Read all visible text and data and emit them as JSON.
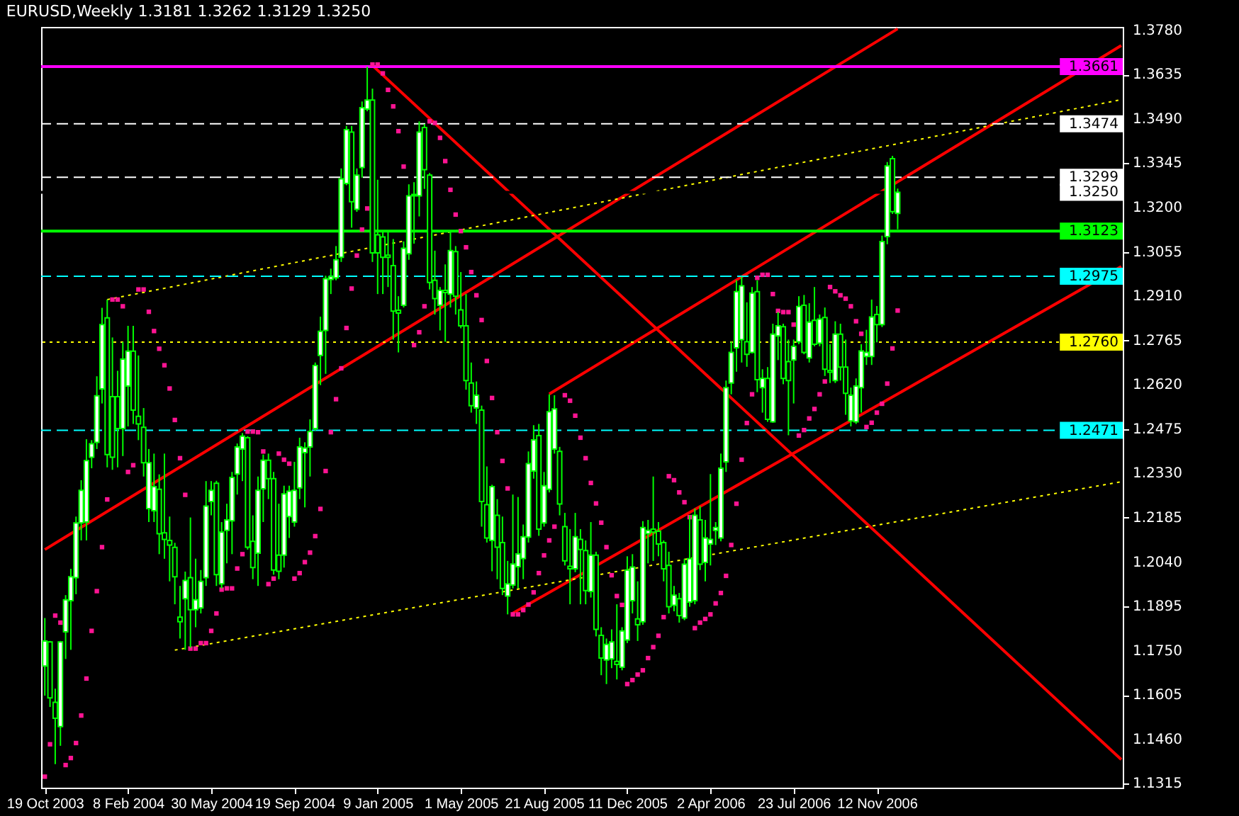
{
  "chart_data": {
    "type": "candlestick",
    "title": "EURUSD,Weekly 1.3181 1.3262 1.3129 1.3250",
    "color": "#00ff00",
    "x": [
      "2003-10-19",
      "2003-10-26",
      "2003-11-02",
      "2003-11-09",
      "2003-11-16",
      "2003-11-23",
      "2003-11-30",
      "2003-12-07",
      "2003-12-14",
      "2003-12-21",
      "2003-12-28",
      "2004-01-04",
      "2004-01-11",
      "2004-01-18",
      "2004-01-25",
      "2004-02-01",
      "2004-02-08",
      "2004-02-15",
      "2004-02-22",
      "2004-02-29",
      "2004-03-07",
      "2004-03-14",
      "2004-03-21",
      "2004-03-28",
      "2004-04-04",
      "2004-04-11",
      "2004-04-18",
      "2004-04-25",
      "2004-05-02",
      "2004-05-09",
      "2004-05-16",
      "2004-05-23",
      "2004-05-30",
      "2004-06-06",
      "2004-06-13",
      "2004-06-20",
      "2004-06-27",
      "2004-07-04",
      "2004-07-11",
      "2004-07-18",
      "2004-07-25",
      "2004-08-01",
      "2004-08-08",
      "2004-08-15",
      "2004-08-22",
      "2004-08-29",
      "2004-09-05",
      "2004-09-12",
      "2004-09-19",
      "2004-09-26",
      "2004-10-03",
      "2004-10-10",
      "2004-10-17",
      "2004-10-24",
      "2004-10-31",
      "2004-11-07",
      "2004-11-14",
      "2004-11-21",
      "2004-11-28",
      "2004-12-05",
      "2004-12-12",
      "2004-12-19",
      "2004-12-26",
      "2005-01-02",
      "2005-01-09",
      "2005-01-16",
      "2005-01-23",
      "2005-01-30",
      "2005-02-06",
      "2005-02-13",
      "2005-02-20",
      "2005-02-27",
      "2005-03-06",
      "2005-03-13",
      "2005-03-20",
      "2005-03-27",
      "2005-04-03",
      "2005-04-10",
      "2005-04-17",
      "2005-04-24",
      "2005-05-01",
      "2005-05-08",
      "2005-05-15",
      "2005-05-22",
      "2005-05-29",
      "2005-06-05",
      "2005-06-12",
      "2005-06-19",
      "2005-06-26",
      "2005-07-03",
      "2005-07-10",
      "2005-07-17",
      "2005-07-24",
      "2005-07-31",
      "2005-08-07",
      "2005-08-14",
      "2005-08-21",
      "2005-08-28",
      "2005-09-04",
      "2005-09-11",
      "2005-09-18",
      "2005-09-25",
      "2005-10-02",
      "2005-10-09",
      "2005-10-16",
      "2005-10-23",
      "2005-10-30",
      "2005-11-06",
      "2005-11-13",
      "2005-11-20",
      "2005-11-27",
      "2005-12-04",
      "2005-12-11",
      "2005-12-18",
      "2005-12-25",
      "2006-01-01",
      "2006-01-08",
      "2006-01-15",
      "2006-01-22",
      "2006-01-29",
      "2006-02-05",
      "2006-02-12",
      "2006-02-19",
      "2006-02-26",
      "2006-03-05",
      "2006-03-12",
      "2006-03-19",
      "2006-03-26",
      "2006-04-02",
      "2006-04-09",
      "2006-04-16",
      "2006-04-23",
      "2006-04-30",
      "2006-05-07",
      "2006-05-14",
      "2006-05-21",
      "2006-05-28",
      "2006-06-04",
      "2006-06-11",
      "2006-06-18",
      "2006-06-25",
      "2006-07-02",
      "2006-07-09",
      "2006-07-16",
      "2006-07-23",
      "2006-07-30",
      "2006-08-06",
      "2006-08-13",
      "2006-08-20",
      "2006-08-27",
      "2006-09-03",
      "2006-09-10",
      "2006-09-17",
      "2006-09-24",
      "2006-10-01",
      "2006-10-08",
      "2006-10-15",
      "2006-10-22",
      "2006-10-29",
      "2006-11-05",
      "2006-11-12",
      "2006-11-19",
      "2006-11-26",
      "2006-12-03",
      "2006-12-10"
    ],
    "ohlc": [
      [
        1.17,
        1.1857,
        1.1603,
        1.1782
      ],
      [
        1.1779,
        1.1782,
        1.1566,
        1.1596
      ],
      [
        1.1581,
        1.1626,
        1.1379,
        1.1529
      ],
      [
        1.1502,
        1.1782,
        1.1439,
        1.1779
      ],
      [
        1.1812,
        1.1932,
        1.1723,
        1.1917
      ],
      [
        1.1914,
        1.2018,
        1.1753,
        1.1992
      ],
      [
        1.1989,
        1.2189,
        1.1935,
        1.2168
      ],
      [
        1.2168,
        1.2308,
        1.2111,
        1.2275
      ],
      [
        1.2171,
        1.2442,
        1.2111,
        1.2372
      ],
      [
        1.2383,
        1.2439,
        1.2347,
        1.2427
      ],
      [
        1.2432,
        1.2648,
        1.241,
        1.2584
      ],
      [
        1.2607,
        1.2872,
        1.2559,
        1.2817
      ],
      [
        1.2839,
        1.2899,
        1.235,
        1.2392
      ],
      [
        1.2581,
        1.2775,
        1.2342,
        1.2383
      ],
      [
        1.2581,
        1.2666,
        1.235,
        1.2477
      ],
      [
        1.2477,
        1.276,
        1.2387,
        1.2704
      ],
      [
        1.2616,
        1.2813,
        1.2484,
        1.273
      ],
      [
        1.273,
        1.2813,
        1.2492,
        1.2537
      ],
      [
        1.2517,
        1.2716,
        1.2439,
        1.2492
      ],
      [
        1.2481,
        1.2544,
        1.232,
        1.2365
      ],
      [
        1.2215,
        1.241,
        1.2171,
        1.2365
      ],
      [
        1.2208,
        1.2395,
        1.2171,
        1.2287
      ],
      [
        1.2278,
        1.2327,
        1.2066,
        1.2133
      ],
      [
        1.2136,
        1.2395,
        1.2051,
        1.2114
      ],
      [
        1.2111,
        1.2189,
        1.1977,
        1.2096
      ],
      [
        1.2088,
        1.2103,
        1.1902,
        1.1992
      ],
      [
        1.186,
        1.1962,
        1.179,
        1.1845
      ],
      [
        1.192,
        1.2009,
        1.1753,
        1.198
      ],
      [
        1.1989,
        1.2186,
        1.176,
        1.1884
      ],
      [
        1.1884,
        1.2051,
        1.1827,
        1.1917
      ],
      [
        1.189,
        1.2014,
        1.1872,
        1.1977
      ],
      [
        1.1989,
        1.2305,
        1.1962,
        1.2223
      ],
      [
        1.2238,
        1.2305,
        1.2193,
        1.2275
      ],
      [
        1.2298,
        1.2306,
        1.1962,
        1.1999
      ],
      [
        1.1969,
        1.2171,
        1.1954,
        1.2138
      ],
      [
        1.2144,
        1.2231,
        1.2036,
        1.2178
      ],
      [
        1.2175,
        1.2335,
        1.2066,
        1.2317
      ],
      [
        1.2328,
        1.2428,
        1.2261,
        1.2417
      ],
      [
        1.241,
        1.2462,
        1.2305,
        1.2452
      ],
      [
        1.2447,
        1.2452,
        1.2081,
        1.2089
      ],
      [
        1.2108,
        1.2193,
        1.1984,
        1.2022
      ],
      [
        1.2069,
        1.232,
        1.1962,
        1.2275
      ],
      [
        1.228,
        1.2392,
        1.2171,
        1.2373
      ],
      [
        1.2373,
        1.2395,
        1.2246,
        1.2313
      ],
      [
        1.2313,
        1.2335,
        1.1999,
        1.2014
      ],
      [
        1.2063,
        1.2231,
        1.1984,
        1.201
      ],
      [
        1.2063,
        1.229,
        1.2022,
        1.2263
      ],
      [
        1.2189,
        1.229,
        1.2119,
        1.2272
      ],
      [
        1.2171,
        1.2368,
        1.2156,
        1.2275
      ],
      [
        1.2283,
        1.2447,
        1.2246,
        1.2417
      ],
      [
        1.2398,
        1.2432,
        1.2219,
        1.2413
      ],
      [
        1.2417,
        1.2507,
        1.232,
        1.2467
      ],
      [
        1.2477,
        1.2693,
        1.247,
        1.2683
      ],
      [
        1.2716,
        1.2843,
        1.2619,
        1.2795
      ],
      [
        1.2798,
        1.2977,
        1.2656,
        1.2967
      ],
      [
        1.2965,
        1.3,
        1.2917,
        1.2974
      ],
      [
        1.297,
        1.3074,
        1.2962,
        1.3029
      ],
      [
        1.3037,
        1.3328,
        1.3022,
        1.3294
      ],
      [
        1.3279,
        1.3467,
        1.3273,
        1.3455
      ],
      [
        1.3447,
        1.3467,
        1.3134,
        1.3219
      ],
      [
        1.3194,
        1.3328,
        1.3186,
        1.3306
      ],
      [
        1.3331,
        1.3547,
        1.3298,
        1.3527
      ],
      [
        1.3522,
        1.3661,
        1.3515,
        1.3552
      ],
      [
        1.3552,
        1.3589,
        1.3022,
        1.3052
      ],
      [
        1.3111,
        1.3291,
        1.2917,
        1.3052
      ],
      [
        1.3104,
        1.3123,
        1.2917,
        1.3037
      ],
      [
        1.3044,
        1.3123,
        1.294,
        1.3037
      ],
      [
        1.301,
        1.3097,
        1.2768,
        1.2861
      ],
      [
        1.2864,
        1.291,
        1.2726,
        1.2855
      ],
      [
        1.288,
        1.3089,
        1.2873,
        1.3067
      ],
      [
        1.3049,
        1.3276,
        1.3029,
        1.3238
      ],
      [
        1.3238,
        1.3283,
        1.3082,
        1.3243
      ],
      [
        1.3238,
        1.3482,
        1.3171,
        1.3447
      ],
      [
        1.3462,
        1.3473,
        1.3261,
        1.3324
      ],
      [
        1.3306,
        1.3313,
        1.2932,
        1.2955
      ],
      [
        1.2962,
        1.3059,
        1.285,
        1.2902
      ],
      [
        1.288,
        1.294,
        1.2798,
        1.2929
      ],
      [
        1.2929,
        1.3014,
        1.2761,
        1.2922
      ],
      [
        1.2917,
        1.3119,
        1.2873,
        1.3059
      ],
      [
        1.3056,
        1.3074,
        1.285,
        1.291
      ],
      [
        1.2865,
        1.2989,
        1.2805,
        1.2813
      ],
      [
        1.2813,
        1.2917,
        1.2604,
        1.2634
      ],
      [
        1.2626,
        1.2693,
        1.2529,
        1.2552
      ],
      [
        1.2544,
        1.2631,
        1.2492,
        1.2586
      ],
      [
        1.2537,
        1.2552,
        1.2156,
        1.2238
      ],
      [
        1.2228,
        1.2353,
        1.2104,
        1.2119
      ],
      [
        1.2111,
        1.2293,
        1.201,
        1.2287
      ],
      [
        1.2193,
        1.2246,
        1.1984,
        1.2089
      ],
      [
        1.2104,
        1.2189,
        1.1932,
        1.1954
      ],
      [
        1.1929,
        1.2044,
        1.1869,
        1.1969
      ],
      [
        1.1965,
        1.2261,
        1.1954,
        1.2034
      ],
      [
        1.2025,
        1.2253,
        1.1954,
        1.2067
      ],
      [
        1.2052,
        1.2163,
        1.1984,
        1.2123
      ],
      [
        1.2122,
        1.2402,
        1.2104,
        1.2362
      ],
      [
        1.2338,
        1.2488,
        1.2313,
        1.244
      ],
      [
        1.2454,
        1.2492,
        1.2126,
        1.2148
      ],
      [
        1.2168,
        1.2335,
        1.2156,
        1.229
      ],
      [
        1.2278,
        1.2589,
        1.2268,
        1.2532
      ],
      [
        1.241,
        1.2586,
        1.2395,
        1.2541
      ],
      [
        1.2402,
        1.2417,
        1.2193,
        1.223
      ],
      [
        1.2156,
        1.2201,
        1.2029,
        1.2044
      ],
      [
        1.2026,
        1.2148,
        1.1902,
        1.2018
      ],
      [
        1.2018,
        1.2201,
        1.2007,
        1.2123
      ],
      [
        1.2114,
        1.2148,
        1.1902,
        1.2081
      ],
      [
        1.2078,
        1.2111,
        1.1902,
        1.1947
      ],
      [
        1.1944,
        1.2171,
        1.1924,
        1.2063
      ],
      [
        1.2063,
        1.2074,
        1.1797,
        1.182
      ],
      [
        1.18,
        1.1827,
        1.167,
        1.1726
      ],
      [
        1.172,
        1.179,
        1.1641,
        1.1771
      ],
      [
        1.1723,
        1.182,
        1.1693,
        1.1779
      ],
      [
        1.1715,
        1.1902,
        1.1656,
        1.1705
      ],
      [
        1.1696,
        1.1827,
        1.1686,
        1.1815
      ],
      [
        1.1785,
        1.2059,
        1.1775,
        1.2014
      ],
      [
        1.1914,
        1.2066,
        1.1872,
        1.2024
      ],
      [
        1.1854,
        1.1977,
        1.1782,
        1.1835
      ],
      [
        1.1845,
        1.2174,
        1.1835,
        1.2153
      ],
      [
        1.2133,
        1.2178,
        1.2036,
        1.2144
      ],
      [
        1.2148,
        1.232,
        1.2044,
        1.2138
      ],
      [
        1.2141,
        1.2171,
        1.2059,
        1.2099
      ],
      [
        1.2104,
        1.2111,
        1.1977,
        1.2018
      ],
      [
        1.2029,
        1.2074,
        1.1872,
        1.1894
      ],
      [
        1.1899,
        1.1962,
        1.1879,
        1.1932
      ],
      [
        1.192,
        1.1939,
        1.1842,
        1.1865
      ],
      [
        1.1857,
        1.2051,
        1.185,
        1.2033
      ],
      [
        1.1909,
        1.2193,
        1.1894,
        1.2051
      ],
      [
        1.1914,
        1.2215,
        1.1902,
        1.2193
      ],
      [
        1.2178,
        1.2223,
        1.2014,
        1.2033
      ],
      [
        1.2039,
        1.2178,
        1.1977,
        1.2119
      ],
      [
        1.2099,
        1.2328,
        1.2029,
        1.2114
      ],
      [
        1.2144,
        1.2171,
        1.2096,
        1.2153
      ],
      [
        1.2119,
        1.2395,
        1.2108,
        1.2347
      ],
      [
        1.2368,
        1.2634,
        1.2335,
        1.2611
      ],
      [
        1.2626,
        1.2761,
        1.2589,
        1.2726
      ],
      [
        1.2741,
        1.2962,
        1.2663,
        1.2925
      ],
      [
        1.2768,
        1.2974,
        1.2693,
        1.2944
      ],
      [
        1.2761,
        1.289,
        1.2679,
        1.272
      ],
      [
        1.2726,
        1.294,
        1.2723,
        1.292
      ],
      [
        1.2925,
        1.2962,
        1.2596,
        1.2637
      ],
      [
        1.2611,
        1.2671,
        1.2529,
        1.2641
      ],
      [
        1.2641,
        1.2678,
        1.2499,
        1.2507
      ],
      [
        1.2499,
        1.282,
        1.2496,
        1.2786
      ],
      [
        1.278,
        1.2858,
        1.2701,
        1.2813
      ],
      [
        1.281,
        1.282,
        1.2622,
        1.2641
      ],
      [
        1.2696,
        1.2768,
        1.2455,
        1.2634
      ],
      [
        1.2701,
        1.2768,
        1.2559,
        1.2746
      ],
      [
        1.2761,
        1.291,
        1.2753,
        1.2876
      ],
      [
        1.288,
        1.2914,
        1.272,
        1.2726
      ],
      [
        1.2708,
        1.2887,
        1.2693,
        1.2825
      ],
      [
        1.2831,
        1.294,
        1.2746,
        1.2753
      ],
      [
        1.2756,
        1.285,
        1.2746,
        1.2835
      ],
      [
        1.284,
        1.2873,
        1.2649,
        1.2671
      ],
      [
        1.2667,
        1.2753,
        1.2626,
        1.2661
      ],
      [
        1.2634,
        1.2828,
        1.2626,
        1.2786
      ],
      [
        1.2786,
        1.282,
        1.2634,
        1.2678
      ],
      [
        1.2678,
        1.2768,
        1.2522,
        1.2592
      ],
      [
        1.2502,
        1.2611,
        1.2484,
        1.2586
      ],
      [
        1.2499,
        1.2641,
        1.2492,
        1.2616
      ],
      [
        1.2611,
        1.2753,
        1.2529,
        1.2731
      ],
      [
        1.2713,
        1.28,
        1.2685,
        1.2726
      ],
      [
        1.2713,
        1.2899,
        1.2685,
        1.2842
      ],
      [
        1.285,
        1.2878,
        1.2759,
        1.2817
      ],
      [
        1.2817,
        1.3108,
        1.2809,
        1.3089
      ],
      [
        1.3105,
        1.3349,
        1.308,
        1.3336
      ],
      [
        1.336,
        1.3369,
        1.3179,
        1.3187
      ],
      [
        1.3181,
        1.3262,
        1.3129,
        1.325
      ]
    ],
    "series": [
      {
        "type": "line",
        "color": "#ff0000",
        "line_style": "solid",
        "x": [
          "2003-10-19",
          "2006-12-10"
        ],
        "values": [
          1.2081,
          1.3785
        ]
      },
      {
        "type": "line",
        "color": "#ff0000",
        "line_style": "solid",
        "x": [
          "2005-08-28",
          "2007-10-07"
        ],
        "values": [
          1.259,
          1.373
        ]
      },
      {
        "type": "line",
        "color": "#ff0000",
        "line_style": "solid",
        "x": [
          "2005-07-10",
          "2007-10-07"
        ],
        "values": [
          1.1873,
          1.3007
        ]
      },
      {
        "type": "line",
        "color": "#ff0000",
        "line_style": "solid",
        "x": [
          "2005-01-02",
          "2007-10-07"
        ],
        "values": [
          1.3665,
          1.1394
        ]
      },
      {
        "type": "line",
        "color": "#ffff00",
        "line_style": "dotted",
        "x": [
          "2004-01-11",
          "2007-10-07"
        ],
        "values": [
          1.2899,
          1.3553
        ]
      },
      {
        "type": "line",
        "color": "#ffff00",
        "line_style": "dotted",
        "x": [
          "2004-04-11",
          "2007-10-07"
        ],
        "values": [
          1.1752,
          1.2303
        ]
      },
      {
        "type": "scatter",
        "color": "#ff1493",
        "marker": "square",
        "values": [
          1.1338,
          1.1444,
          1.1865,
          1.1842,
          1.1376,
          1.1399,
          1.1448,
          1.1538,
          1.1659,
          1.1815,
          1.1945,
          1.2089,
          1.2245,
          1.2899,
          1.2899,
          1.2877,
          1.2335,
          1.2357,
          1.2932,
          1.2932,
          1.2859,
          1.2796,
          1.2738,
          1.2684,
          1.2608,
          1.2505,
          1.238,
          1.226,
          1.1757,
          1.1757,
          1.1775,
          1.1775,
          1.1815,
          1.1872,
          1.195,
          1.1954,
          1.1954,
          1.2019,
          1.2066,
          1.2467,
          1.2467,
          1.2465,
          1.2402,
          1.1968,
          1.1986,
          1.2395,
          1.2375,
          1.2362,
          1.1986,
          1.2004,
          1.204,
          1.2071,
          1.2125,
          1.2214,
          1.2338,
          1.2465,
          1.2573,
          1.2674,
          1.2806,
          1.2935,
          1.3043,
          1.3128,
          1.3197,
          1.3668,
          1.3668,
          1.3639,
          1.3585,
          1.3531,
          1.345,
          1.3334,
          null,
          1.275,
          1.2792,
          1.2877,
          1.3482,
          1.3477,
          1.3428,
          1.3352,
          1.3258,
          1.3177,
          1.3123,
          1.307,
          1.2989,
          1.2913,
          1.2832,
          1.2698,
          1.2577,
          1.2465,
          1.2371,
          1.2281,
          1.1869,
          1.1869,
          1.1883,
          1.1901,
          1.1941,
          1.2004,
          1.2062,
          1.2111,
          1.2156,
          null,
          1.2586,
          1.2568,
          1.2519,
          1.2447,
          1.238,
          1.2299,
          1.2232,
          1.2169,
          1.2089,
          1.1997,
          1.1929,
          1.19,
          1.1641,
          1.1654,
          1.1672,
          1.1686,
          1.1726,
          1.1762,
          1.1799,
          1.186,
          1.2321,
          1.2308,
          1.2268,
          1.2236,
          1.2187,
          1.1824,
          1.1842,
          1.1854,
          1.1869,
          1.1905,
          1.1939,
          1.1995,
          1.2096,
          1.2231,
          1.2375,
          1.2495,
          1.2589,
          1.297,
          1.298,
          1.298,
          1.2917,
          1.2862,
          1.2858,
          1.2858,
          1.2817,
          1.2454,
          1.2472,
          1.251,
          1.2541,
          1.2589,
          1.2631,
          1.294,
          1.2926,
          1.2913,
          1.2902,
          1.2877,
          1.2828,
          1.2787,
          1.2482,
          1.2496,
          1.2529,
          1.2558,
          1.2624,
          1.2739,
          1.2863
        ]
      }
    ],
    "ref_lines": [
      {
        "axis": "y",
        "value": 1.3661,
        "label": "1.3661",
        "color": "#ff00ff",
        "line_style": "solid"
      },
      {
        "axis": "y",
        "value": 1.3474,
        "label": "1.3474",
        "color": "#ffffff",
        "line_style": "dashed"
      },
      {
        "axis": "y",
        "value": 1.3299,
        "label": "1.3299",
        "color": "#ffffff",
        "line_style": "dashed"
      },
      {
        "axis": "y",
        "value": 1.325,
        "label": "1.3250",
        "color": "#000000"
      },
      {
        "axis": "y",
        "value": 1.3123,
        "label": "1.3123",
        "color": "#00ff00",
        "line_style": "solid"
      },
      {
        "axis": "y",
        "value": 1.2975,
        "label": "1.2975",
        "color": "#00ffff",
        "line_style": "dashed"
      },
      {
        "axis": "y",
        "value": 1.276,
        "label": "1.2760",
        "color": "#ffff00",
        "line_style": "dotted"
      },
      {
        "axis": "y",
        "value": 1.2471,
        "label": "1.2471",
        "color": "#00ffff",
        "line_style": "dashed"
      }
    ],
    "xlim": [
      "2003-10-14",
      "2007-10-09"
    ],
    "xticks": [
      {
        "value": "2003-10-19",
        "label": "19 Oct 2003"
      },
      {
        "value": "2004-02-08",
        "label": "8 Feb 2004"
      },
      {
        "value": "2004-05-30",
        "label": "30 May 2004"
      },
      {
        "value": "2004-09-19",
        "label": "19 Sep 2004"
      },
      {
        "value": "2005-01-09",
        "label": "9 Jan 2005"
      },
      {
        "value": "2005-05-01",
        "label": "1 May 2005"
      },
      {
        "value": "2005-08-21",
        "label": "21 Aug 2005"
      },
      {
        "value": "2005-12-11",
        "label": "11 Dec 2005"
      },
      {
        "value": "2006-04-02",
        "label": "2 Apr 2006"
      },
      {
        "value": "2006-07-23",
        "label": "23 Jul 2006"
      },
      {
        "value": "2006-11-12",
        "label": "12 Nov 2006"
      }
    ],
    "ylim": [
      1.1302,
      1.3791
    ],
    "yticks": [
      {
        "value": 1.378,
        "label": "1.3780"
      },
      1.3635,
      {
        "value": 1.349,
        "label": "1.3490"
      },
      1.3345,
      {
        "value": 1.32,
        "label": "1.3200"
      },
      1.3055,
      {
        "value": 1.291,
        "label": "1.2910"
      },
      1.2765,
      {
        "value": 1.262,
        "label": "1.2620"
      },
      1.2475,
      {
        "value": 1.233,
        "label": "1.2330"
      },
      1.2185,
      {
        "value": 1.204,
        "label": "1.2040"
      },
      1.1895,
      {
        "value": 1.175,
        "label": "1.1750"
      },
      1.1605,
      {
        "value": 1.146,
        "label": "1.1460"
      },
      1.1315
    ]
  }
}
